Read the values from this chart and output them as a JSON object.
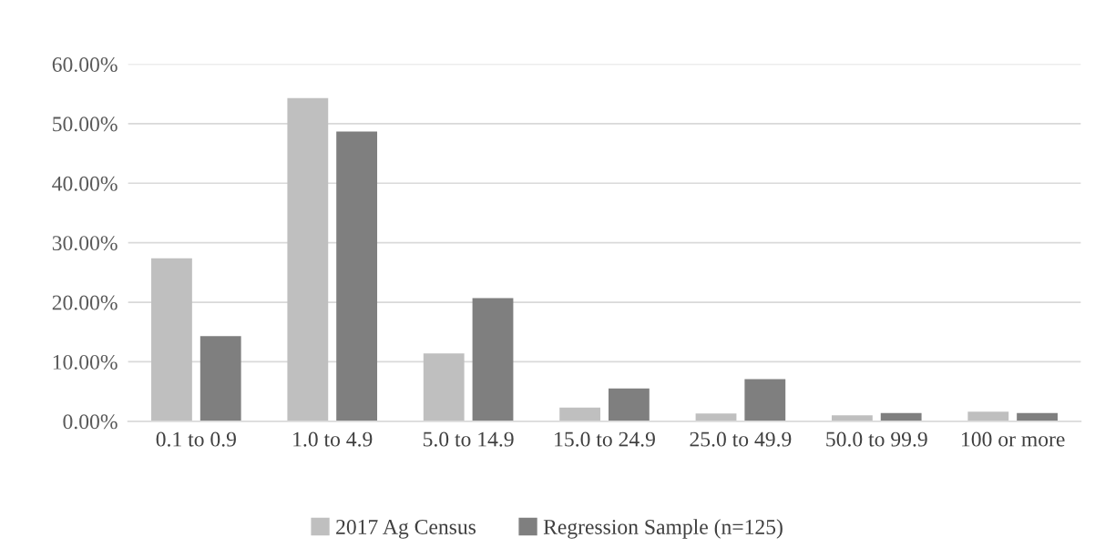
{
  "chart_data": {
    "type": "bar",
    "categories": [
      "0.1 to 0.9",
      "1.0 to 4.9",
      "5.0 to 14.9",
      "15.0 to 24.9",
      "25.0 to 49.9",
      "50.0 to 99.9",
      "100 or more"
    ],
    "series": [
      {
        "name": "2017 Ag Census",
        "color": "#bfbfbf",
        "values": [
          27.4,
          54.3,
          11.4,
          2.3,
          1.3,
          1.0,
          1.6
        ]
      },
      {
        "name": "Regression Sample (n=125)",
        "color": "#7f7f7f",
        "values": [
          14.3,
          48.7,
          20.7,
          5.5,
          7.1,
          1.4,
          1.4
        ]
      }
    ],
    "ylim": [
      0,
      60
    ],
    "yticks": [
      {
        "value": 0,
        "label": "0.00%"
      },
      {
        "value": 10,
        "label": "10.00%"
      },
      {
        "value": 20,
        "label": "20.00%"
      },
      {
        "value": 30,
        "label": "30.00%"
      },
      {
        "value": 40,
        "label": "40.00%"
      },
      {
        "value": 50,
        "label": "50.00%"
      },
      {
        "value": 60,
        "label": "60.00%"
      }
    ],
    "grid": "y",
    "legend": "bottom"
  }
}
